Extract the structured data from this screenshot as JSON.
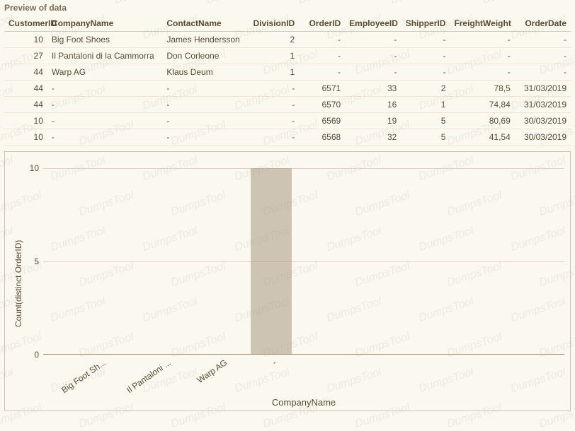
{
  "title": "Preview of data",
  "table": {
    "columns": [
      "CustomerID",
      "CompanyName",
      "ContactName",
      "DivisionID",
      "OrderID",
      "EmployeeID",
      "ShipperID",
      "FreightWeight",
      "OrderDate"
    ],
    "col_align": [
      "num",
      "",
      "",
      "num",
      "num",
      "num",
      "num",
      "num",
      "num"
    ],
    "col_widths": [
      "60px",
      "160px",
      "120px",
      "70px",
      "64px",
      "78px",
      "68px",
      "90px",
      "78px"
    ],
    "rows": [
      [
        "10",
        "Big Foot Shoes",
        "James Hendersson",
        "2",
        "-",
        "-",
        "-",
        "-",
        "-"
      ],
      [
        "27",
        "Il Pantaloni di la Cammorra",
        "Don Corleone",
        "1",
        "-",
        "-",
        "-",
        "-",
        "-"
      ],
      [
        "44",
        "Warp AG",
        "Klaus Deum",
        "1",
        "-",
        "-",
        "-",
        "-",
        "-"
      ],
      [
        "44",
        "-",
        "-",
        "-",
        "6571",
        "33",
        "2",
        "78,5",
        "31/03/2019"
      ],
      [
        "44",
        "-",
        "-",
        "-",
        "6570",
        "16",
        "1",
        "74,84",
        "31/03/2019"
      ],
      [
        "10",
        "-",
        "-",
        "-",
        "6569",
        "19",
        "5",
        "80,69",
        "30/03/2019"
      ],
      [
        "10",
        "-",
        "-",
        "-",
        "6568",
        "32",
        "5",
        "41,54",
        "30/03/2019"
      ]
    ]
  },
  "chart": {
    "type": "bar",
    "ylabel": "Count(distinct OrderID)",
    "xlabel": "CompanyName",
    "ylim": [
      0,
      10.5
    ],
    "yticks": [
      0,
      5,
      10
    ],
    "grid_color": "#c58b7d",
    "bar_color": "#cec4b3",
    "background": "#fbf8ef",
    "categories": [
      "Big Foot Sh...",
      "Il Pantaloni ...",
      "Warp AG",
      "-"
    ],
    "values": [
      0,
      0,
      0,
      10
    ]
  },
  "watermark_text": "DumpsTool"
}
